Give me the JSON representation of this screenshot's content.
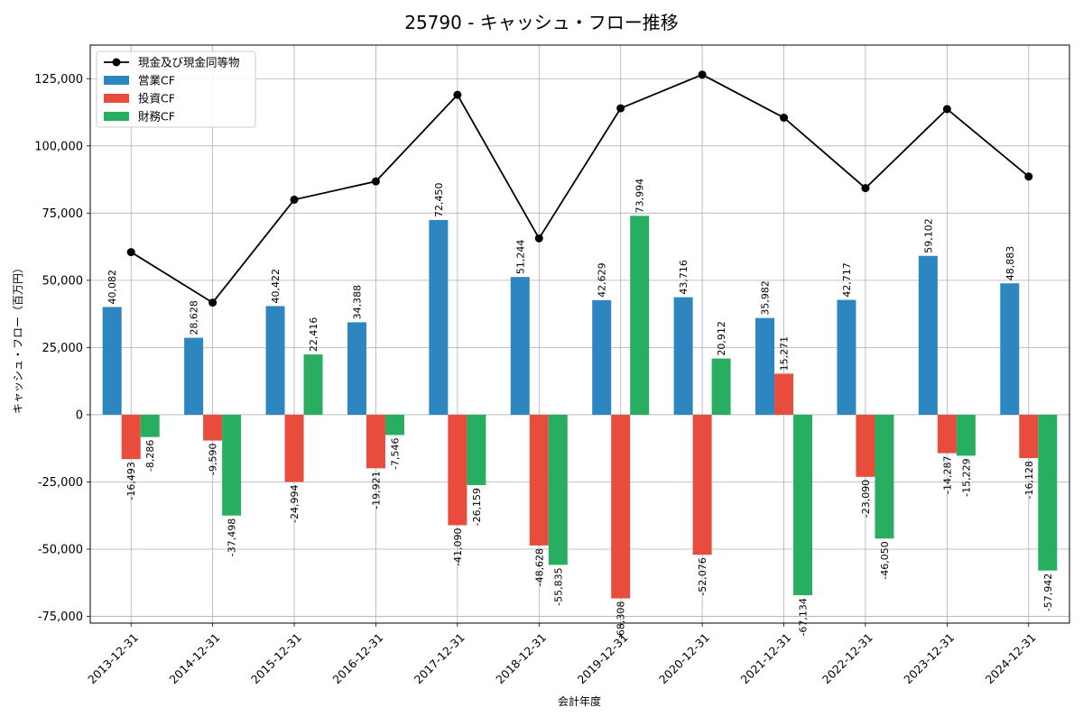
{
  "chart_data": {
    "type": "bar",
    "title": "25790 - キャッシュ・フロー推移",
    "xlabel": "会計年度",
    "ylabel": "キャッシュ・フロー（百万円）",
    "ylim": [
      -77500,
      137500
    ],
    "yticks": [
      -75000,
      -50000,
      -25000,
      0,
      25000,
      50000,
      75000,
      100000,
      125000
    ],
    "ytick_labels": [
      "-75,000",
      "-50,000",
      "-25,000",
      "0",
      "25,000",
      "50,000",
      "75,000",
      "100,000",
      "125,000"
    ],
    "grid": true,
    "legend_position": "top-left",
    "categories": [
      "2013-12-31",
      "2014-12-31",
      "2015-12-31",
      "2016-12-31",
      "2017-12-31",
      "2018-12-31",
      "2019-12-31",
      "2020-12-31",
      "2021-12-31",
      "2022-12-31",
      "2023-12-31",
      "2024-12-31"
    ],
    "series": [
      {
        "name": "営業CF",
        "kind": "bar",
        "color": "#2e86c1",
        "values": [
          40082,
          28628,
          40422,
          34388,
          72450,
          51244,
          42629,
          43716,
          35982,
          42717,
          59102,
          48883
        ],
        "labels": [
          "40,082",
          "28,628",
          "40,422",
          "34,388",
          "72,450",
          "51,244",
          "42,629",
          "43,716",
          "35,982",
          "42,717",
          "59,102",
          "48,883"
        ]
      },
      {
        "name": "投資CF",
        "kind": "bar",
        "color": "#e74c3c",
        "values": [
          -16493,
          -9590,
          -24994,
          -19921,
          -41090,
          -48628,
          -68308,
          -52076,
          15271,
          -23090,
          -14287,
          -16128
        ],
        "labels": [
          "-16,493",
          "-9,590",
          "-24,994",
          "-19,921",
          "-41,090",
          "-48,628",
          "-68,308",
          "-52,076",
          "15,271",
          "-23,090",
          "-14,287",
          "-16,128"
        ]
      },
      {
        "name": "財務CF",
        "kind": "bar",
        "color": "#27ae60",
        "values": [
          -8286,
          -37498,
          22416,
          -7546,
          -26159,
          -55835,
          73994,
          20912,
          -67134,
          -46050,
          -15229,
          -57942
        ],
        "labels": [
          "-8,286",
          "-37,498",
          "22,416",
          "-7,546",
          "-26,159",
          "-55,835",
          "73,994",
          "20,912",
          "-67,134",
          "-46,050",
          "-15,229",
          "-57,942"
        ]
      },
      {
        "name": "現金及び現金同等物",
        "kind": "line",
        "color": "#000000",
        "values": [
          60500,
          41700,
          80000,
          86800,
          119000,
          65600,
          114000,
          126500,
          110500,
          84300,
          113700,
          88600
        ]
      }
    ]
  }
}
